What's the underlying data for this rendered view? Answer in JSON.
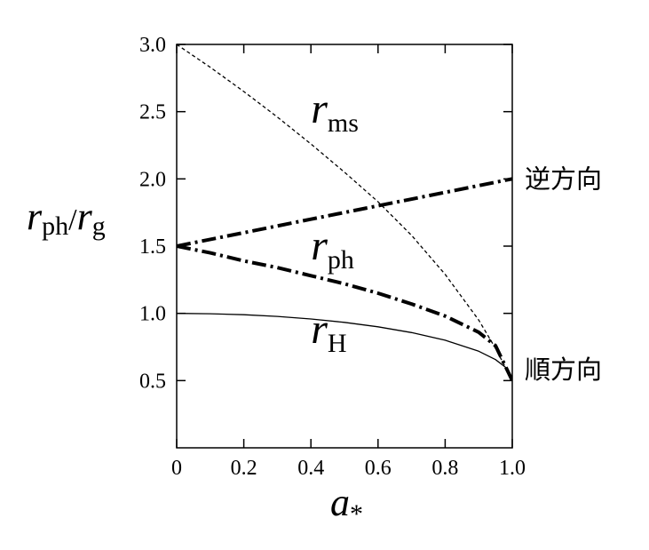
{
  "chart_data": {
    "type": "line",
    "xlim": [
      0,
      1
    ],
    "ylim": [
      0,
      3
    ],
    "x_ticks": [
      0,
      0.2,
      0.4,
      0.6,
      0.8,
      1.0
    ],
    "x_tick_labels": [
      "0",
      "0.2",
      "0.4",
      "0.6",
      "0.8",
      "1.0"
    ],
    "y_ticks": [
      0.5,
      1.0,
      1.5,
      2.0,
      2.5,
      3.0
    ],
    "y_tick_labels": [
      "0.5",
      "1.0",
      "1.5",
      "2.0",
      "2.5",
      "3.0"
    ],
    "xlabel": {
      "main": "a",
      "sub": "*"
    },
    "ylabel": {
      "num": "r",
      "num_sub": "ph",
      "slash": "/",
      "den": "r",
      "den_sub": "g"
    },
    "grid": false,
    "series": [
      {
        "name": "r_ms",
        "style": "dashed",
        "x": [
          0,
          0.1,
          0.2,
          0.3,
          0.4,
          0.5,
          0.6,
          0.7,
          0.8,
          0.9,
          0.95,
          1.0
        ],
        "y": [
          3.0,
          2.83,
          2.65,
          2.46,
          2.26,
          2.05,
          1.83,
          1.58,
          1.29,
          0.95,
          0.74,
          0.5
        ]
      },
      {
        "name": "r_ph (retrograde)",
        "style": "dashdot-thick",
        "x": [
          0,
          0.2,
          0.4,
          0.6,
          0.8,
          1.0
        ],
        "y": [
          1.5,
          1.6,
          1.7,
          1.8,
          1.9,
          2.0
        ]
      },
      {
        "name": "r_ph (prograde)",
        "style": "dashdot-thick",
        "x": [
          0,
          0.1,
          0.2,
          0.3,
          0.4,
          0.5,
          0.6,
          0.7,
          0.8,
          0.9,
          0.95,
          1.0
        ],
        "y": [
          1.5,
          1.45,
          1.39,
          1.34,
          1.28,
          1.22,
          1.15,
          1.07,
          0.98,
          0.86,
          0.76,
          0.5
        ]
      },
      {
        "name": "r_H",
        "style": "solid",
        "x": [
          0,
          0.1,
          0.2,
          0.3,
          0.4,
          0.5,
          0.6,
          0.7,
          0.8,
          0.9,
          0.95,
          0.98,
          1.0
        ],
        "y": [
          1.0,
          0.997,
          0.99,
          0.977,
          0.958,
          0.933,
          0.9,
          0.857,
          0.8,
          0.718,
          0.656,
          0.599,
          0.5
        ]
      }
    ],
    "annotations": [
      {
        "main": "r",
        "sub": "ms",
        "x": 0.4,
        "y": 2.42
      },
      {
        "main": "r",
        "sub": "ph",
        "x": 0.4,
        "y": 1.4
      },
      {
        "main": "r",
        "sub": "H",
        "x": 0.4,
        "y": 0.78
      }
    ],
    "side_labels": [
      {
        "text": "逆方向",
        "y": 2.0
      },
      {
        "text": "順方向",
        "y": 0.58
      }
    ]
  }
}
